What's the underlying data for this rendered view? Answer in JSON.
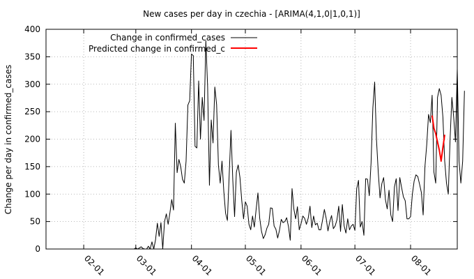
{
  "chart_data": {
    "type": "line",
    "title": "New cases per day in czechia -  [ARIMA(4,1,0|1,0,1)]",
    "xlabel": "",
    "ylabel": "Change per day in confirmed_cases",
    "ylim": [
      0,
      400
    ],
    "yticks": [
      0,
      50,
      100,
      150,
      200,
      250,
      300,
      350,
      400
    ],
    "xlim": [
      "2020-01-11",
      "2020-08-27"
    ],
    "xticks": [
      {
        "date": "2020-02-01",
        "label": "02-01"
      },
      {
        "date": "2020-03-01",
        "label": "03-01"
      },
      {
        "date": "2020-04-01",
        "label": "04-01"
      },
      {
        "date": "2020-05-01",
        "label": "05-01"
      },
      {
        "date": "2020-06-01",
        "label": "06-01"
      },
      {
        "date": "2020-07-01",
        "label": "07-01"
      },
      {
        "date": "2020-08-01",
        "label": "08-01"
      }
    ],
    "grid": true,
    "legend_position": "top-left",
    "series": [
      {
        "name": "Change in confirmed_cases",
        "color": "#000000",
        "start_date": "2020-02-28",
        "values": [
          0,
          0,
          2,
          0,
          2,
          4,
          1,
          0,
          0,
          5,
          0,
          13,
          0,
          17,
          47,
          23,
          48,
          0,
          50,
          64,
          45,
          66,
          90,
          71,
          229,
          139,
          163,
          150,
          127,
          120,
          160,
          262,
          270,
          355,
          352,
          187,
          184,
          306,
          200,
          276,
          234,
          379,
          295,
          116,
          235,
          193,
          295,
          263,
          153,
          120,
          160,
          105,
          65,
          52,
          135,
          216,
          126,
          59,
          140,
          153,
          130,
          88,
          55,
          86,
          78,
          45,
          35,
          60,
          40,
          72,
          102,
          56,
          32,
          19,
          26,
          38,
          45,
          75,
          74,
          42,
          36,
          20,
          34,
          54,
          48,
          50,
          57,
          41,
          16,
          110,
          73,
          55,
          77,
          35,
          46,
          60,
          56,
          45,
          56,
          78,
          39,
          60,
          44,
          47,
          35,
          35,
          53,
          72,
          56,
          33,
          50,
          61,
          37,
          42,
          53,
          78,
          32,
          81,
          42,
          29,
          55,
          35,
          42,
          45,
          34,
          110,
          125,
          40,
          50,
          25,
          128,
          127,
          97,
          157,
          257,
          304,
          200,
          140,
          93,
          119,
          130,
          90,
          73,
          107,
          62,
          50,
          113,
          128,
          70,
          130,
          112,
          95,
          88,
          55,
          55,
          59,
          100,
          124,
          135,
          132,
          118,
          103,
          62,
          150,
          190,
          245,
          230,
          280,
          140,
          120,
          276,
          292,
          280,
          240,
          160,
          120,
          100,
          200,
          276,
          240,
          195,
          328,
          160,
          120,
          160,
          288
        ]
      },
      {
        "name": "Predicted change in confirmed_c",
        "color": "#ff0000",
        "start_date": "2020-08-13",
        "values": [
          243,
          220,
          210,
          195,
          180,
          160,
          185,
          208
        ]
      }
    ]
  }
}
